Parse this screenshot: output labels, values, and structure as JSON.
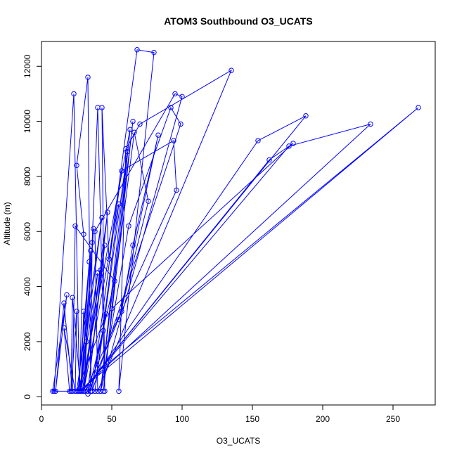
{
  "chart_data": {
    "type": "scatter",
    "title": "ATOM3 Southbound O3_UCATS",
    "xlabel": "O3_UCATS",
    "ylabel": "Altitude (m)",
    "xlim": [
      0,
      280
    ],
    "ylim": [
      -300,
      12900
    ],
    "x_ticks": [
      0,
      50,
      100,
      150,
      200,
      250
    ],
    "y_ticks": [
      0,
      2000,
      4000,
      6000,
      8000,
      10000,
      12000
    ],
    "grid": false,
    "color": "#0000ff",
    "series": [
      {
        "points": [
          [
            9,
            200
          ],
          [
            23,
            11000
          ],
          [
            27,
            200
          ],
          [
            30,
            5900
          ],
          [
            25,
            8400
          ],
          [
            33,
            11600
          ],
          [
            35,
            200
          ],
          [
            36,
            5600
          ],
          [
            40,
            10500
          ],
          [
            45,
            200
          ],
          [
            43,
            10500
          ],
          [
            48,
            5000
          ],
          [
            68,
            12600
          ],
          [
            80,
            12500
          ],
          [
            55,
            200
          ],
          [
            60,
            9000
          ],
          [
            70,
            9900
          ],
          [
            135,
            11850
          ],
          [
            40,
            200
          ],
          [
            38,
            6000
          ],
          [
            95,
            11000
          ],
          [
            100,
            10900
          ],
          [
            42,
            200
          ],
          [
            62,
            6200
          ],
          [
            92,
            10500
          ],
          [
            99,
            9900
          ],
          [
            36,
            200
          ],
          [
            57,
            8200
          ],
          [
            94,
            9300
          ],
          [
            96,
            7500
          ],
          [
            31,
            200
          ],
          [
            154,
            9300
          ],
          [
            188,
            10200
          ],
          [
            29,
            200
          ],
          [
            176,
            9100
          ],
          [
            234,
            9900
          ],
          [
            27,
            200
          ],
          [
            268,
            10500
          ],
          [
            40,
            900
          ],
          [
            162,
            8600
          ],
          [
            179,
            9200
          ],
          [
            50,
            3200
          ],
          [
            66,
            9600
          ],
          [
            76,
            7100
          ],
          [
            55,
            2800
          ],
          [
            83,
            9500
          ],
          [
            65,
            5500
          ],
          [
            57,
            3100
          ],
          [
            33,
            100
          ],
          [
            52,
            4200
          ],
          [
            24,
            6200
          ],
          [
            22,
            200
          ],
          [
            16,
            3400
          ],
          [
            10,
            200
          ],
          [
            18,
            3700
          ],
          [
            8,
            200
          ],
          [
            20,
            200
          ],
          [
            16,
            2500
          ],
          [
            24,
            200
          ],
          [
            25,
            3100
          ],
          [
            21,
            200
          ],
          [
            22,
            3600
          ],
          [
            28,
            200
          ],
          [
            32,
            2000
          ],
          [
            30,
            3100
          ],
          [
            28,
            200
          ],
          [
            34,
            4900
          ],
          [
            26,
            200
          ],
          [
            35,
            5300
          ],
          [
            30,
            200
          ],
          [
            42,
            4600
          ],
          [
            29,
            200
          ],
          [
            45,
            5500
          ],
          [
            33,
            200
          ],
          [
            47,
            6700
          ],
          [
            30,
            200
          ],
          [
            55,
            7000
          ],
          [
            38,
            200
          ],
          [
            61,
            8900
          ],
          [
            42,
            200
          ],
          [
            65,
            10000
          ],
          [
            44,
            200
          ],
          [
            63,
            9700
          ],
          [
            28,
            200
          ],
          [
            37,
            6100
          ],
          [
            30,
            200
          ],
          [
            40,
            4500
          ],
          [
            27,
            200
          ],
          [
            43,
            6500
          ],
          [
            25,
            200
          ],
          [
            46,
            3000
          ],
          [
            35,
            200
          ],
          [
            44,
            2400
          ]
        ]
      }
    ]
  }
}
